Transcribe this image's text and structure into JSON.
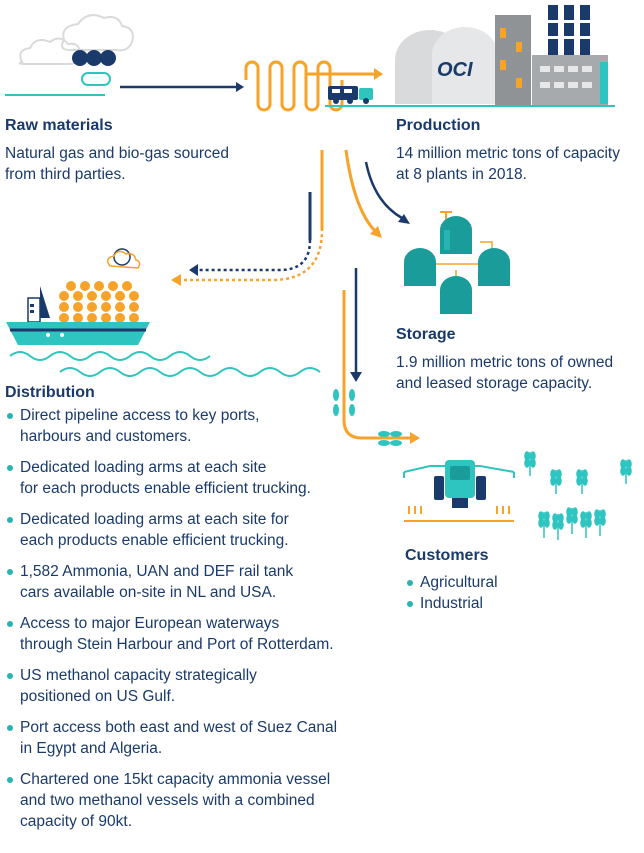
{
  "colors": {
    "navy": "#1a3a6b",
    "orange": "#f7a229",
    "teal": "#2bb3b1",
    "light_teal": "#2ec4c0",
    "gray": "#a7aaad",
    "light_gray": "#d9dadb"
  },
  "logo": {
    "text": "OCI"
  },
  "raw_materials": {
    "title": "Raw materials",
    "text": "Natural gas and bio-gas sourced from third parties."
  },
  "production": {
    "title": "Production",
    "text": "14 million metric tons of capacity at 8 plants in 2018."
  },
  "storage": {
    "title": "Storage",
    "text": "1.9 million metric tons of owned and leased storage capacity."
  },
  "distribution": {
    "title": "Distribution",
    "items": [
      "Direct pipeline access to key ports,\nharbours and customers.",
      "Dedicated loading arms at each site\nfor each products enable efficient trucking.",
      "Dedicated loading arms at each site for\neach products enable efficient trucking.",
      "1,582 Ammonia, UAN and DEF rail tank\ncars available on-site in NL and USA.",
      "Access to major European waterways\nthrough Stein Harbour and Port of Rotterdam.",
      "US methanol capacity strategically\npositioned on US Gulf.",
      "Port access both east and west of Suez Canal\nin Egypt and Algeria.",
      "Chartered one 15kt capacity ammonia vessel\nand two methanol vessels with a combined\ncapacity of 90kt."
    ]
  },
  "customers": {
    "title": "Customers",
    "items": [
      "Agricultural",
      "Industrial"
    ]
  },
  "icons": [
    "cloud-icon",
    "factory-icon",
    "truck-icon",
    "ship-icon",
    "storage-tank-icon",
    "tractor-icon",
    "wheat-icon",
    "flow-arrow-icon"
  ]
}
